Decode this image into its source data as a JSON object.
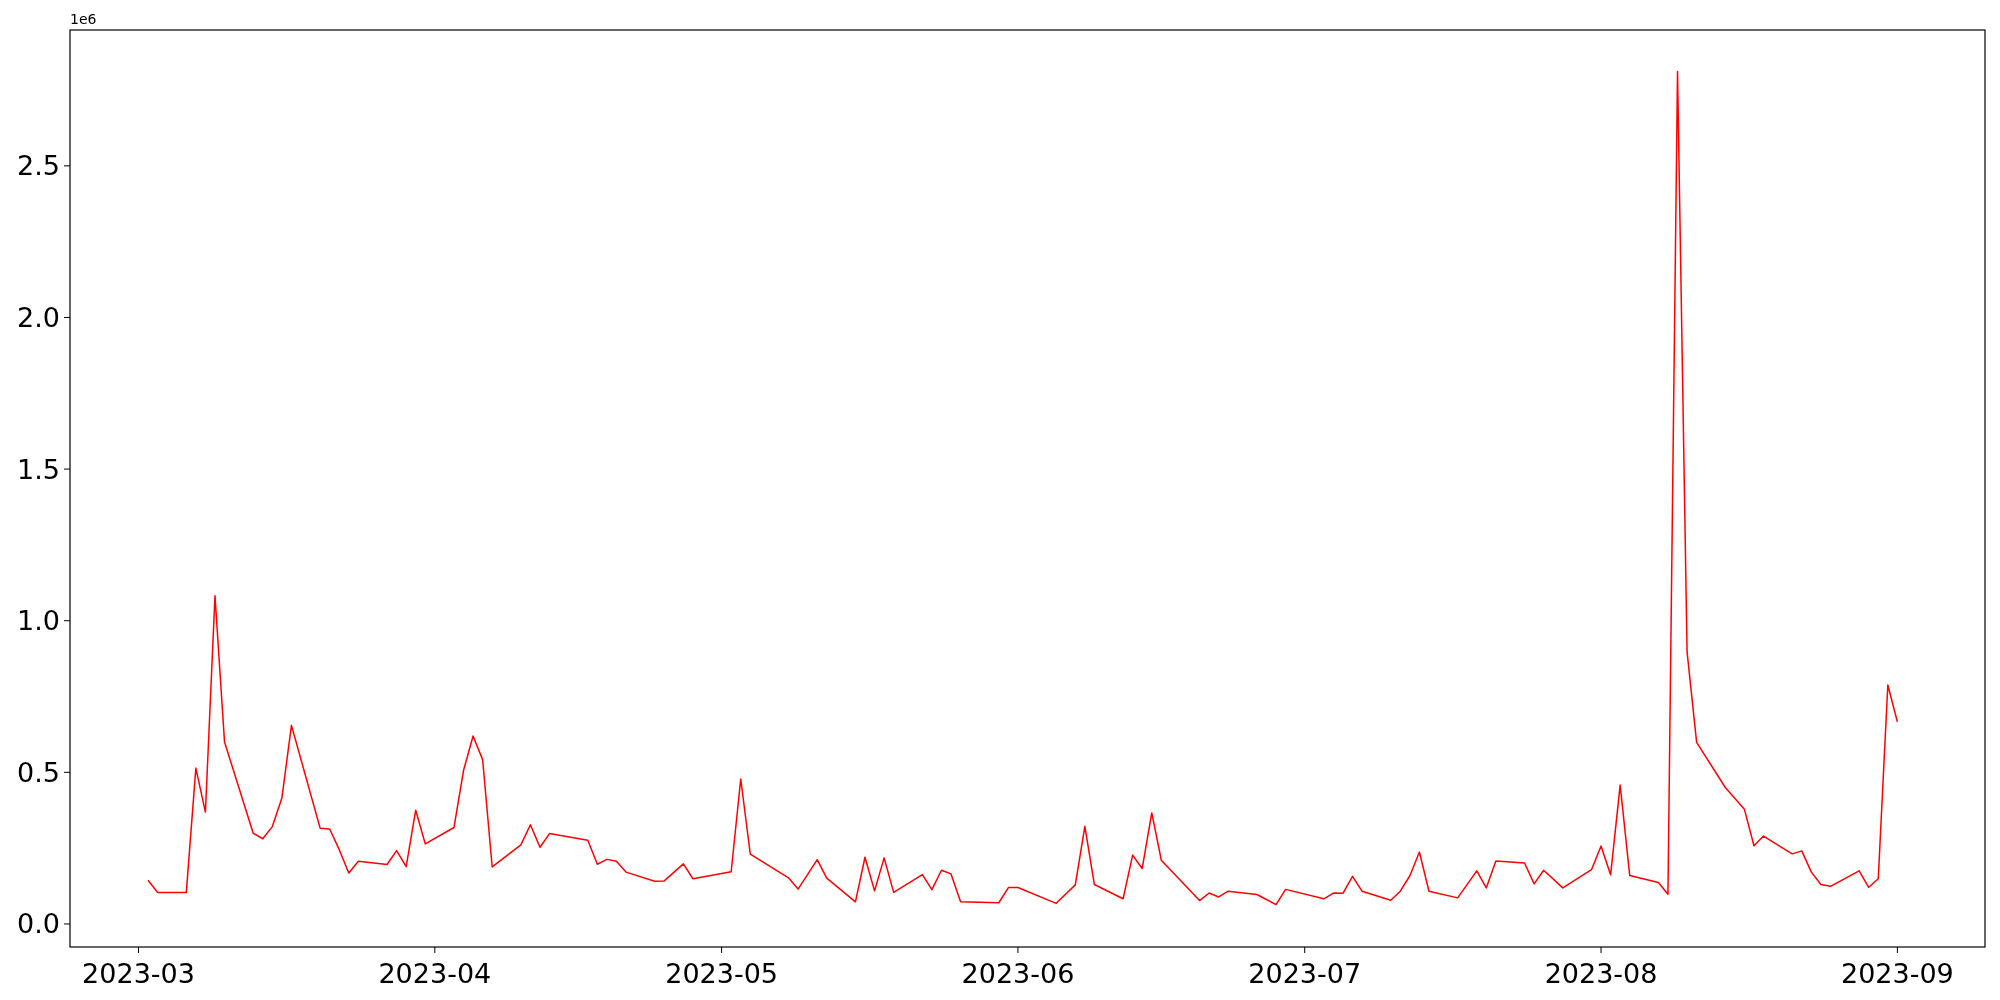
{
  "chart_data": {
    "type": "line",
    "annotations": [
      "1e6"
    ],
    "x": [
      "2023-03-02",
      "2023-03-03",
      "2023-03-06",
      "2023-03-07",
      "2023-03-08",
      "2023-03-09",
      "2023-03-10",
      "2023-03-13",
      "2023-03-14",
      "2023-03-15",
      "2023-03-16",
      "2023-03-17",
      "2023-03-20",
      "2023-03-21",
      "2023-03-22",
      "2023-03-23",
      "2023-03-24",
      "2023-03-27",
      "2023-03-28",
      "2023-03-29",
      "2023-03-30",
      "2023-03-31",
      "2023-04-03",
      "2023-04-04",
      "2023-04-05",
      "2023-04-06",
      "2023-04-07",
      "2023-04-10",
      "2023-04-11",
      "2023-04-12",
      "2023-04-13",
      "2023-04-17",
      "2023-04-18",
      "2023-04-19",
      "2023-04-20",
      "2023-04-21",
      "2023-04-24",
      "2023-04-25",
      "2023-04-27",
      "2023-04-28",
      "2023-05-02",
      "2023-05-03",
      "2023-05-04",
      "2023-05-08",
      "2023-05-09",
      "2023-05-11",
      "2023-05-12",
      "2023-05-15",
      "2023-05-16",
      "2023-05-17",
      "2023-05-18",
      "2023-05-19",
      "2023-05-22",
      "2023-05-23",
      "2023-05-24",
      "2023-05-25",
      "2023-05-26",
      "2023-05-30",
      "2023-05-31",
      "2023-06-01",
      "2023-06-05",
      "2023-06-07",
      "2023-06-08",
      "2023-06-09",
      "2023-06-12",
      "2023-06-13",
      "2023-06-14",
      "2023-06-15",
      "2023-06-16",
      "2023-06-20",
      "2023-06-21",
      "2023-06-22",
      "2023-06-23",
      "2023-06-26",
      "2023-06-28",
      "2023-06-29",
      "2023-07-03",
      "2023-07-04",
      "2023-07-05",
      "2023-07-06",
      "2023-07-07",
      "2023-07-10",
      "2023-07-11",
      "2023-07-12",
      "2023-07-13",
      "2023-07-14",
      "2023-07-17",
      "2023-07-19",
      "2023-07-20",
      "2023-07-21",
      "2023-07-24",
      "2023-07-25",
      "2023-07-26",
      "2023-07-28",
      "2023-07-31",
      "2023-08-01",
      "2023-08-02",
      "2023-08-03",
      "2023-08-04",
      "2023-08-07",
      "2023-08-08",
      "2023-08-09",
      "2023-08-10",
      "2023-08-11",
      "2023-08-14",
      "2023-08-16",
      "2023-08-17",
      "2023-08-18",
      "2023-08-21",
      "2023-08-22",
      "2023-08-23",
      "2023-08-24",
      "2023-08-25",
      "2023-08-28",
      "2023-08-29",
      "2023-08-30",
      "2023-08-31",
      "2023-09-01"
    ],
    "series": [
      {
        "color": "#ff0000",
        "values": [
          0.144,
          0.104,
          0.104,
          0.514,
          0.369,
          1.082,
          0.6,
          0.299,
          0.281,
          0.321,
          0.415,
          0.655,
          0.316,
          0.313,
          0.245,
          0.168,
          0.207,
          0.196,
          0.242,
          0.189,
          0.375,
          0.264,
          0.318,
          0.506,
          0.62,
          0.542,
          0.188,
          0.261,
          0.327,
          0.253,
          0.298,
          0.276,
          0.197,
          0.213,
          0.207,
          0.171,
          0.141,
          0.142,
          0.198,
          0.149,
          0.172,
          0.478,
          0.23,
          0.152,
          0.115,
          0.212,
          0.151,
          0.073,
          0.22,
          0.109,
          0.218,
          0.104,
          0.163,
          0.113,
          0.177,
          0.165,
          0.073,
          0.07,
          0.12,
          0.12,
          0.068,
          0.129,
          0.322,
          0.13,
          0.083,
          0.227,
          0.183,
          0.366,
          0.21,
          0.077,
          0.102,
          0.089,
          0.108,
          0.097,
          0.064,
          0.114,
          0.083,
          0.102,
          0.101,
          0.157,
          0.108,
          0.078,
          0.108,
          0.159,
          0.237,
          0.108,
          0.086,
          0.175,
          0.119,
          0.208,
          0.201,
          0.132,
          0.177,
          0.119,
          0.179,
          0.257,
          0.162,
          0.458,
          0.16,
          0.137,
          0.098,
          2.811,
          0.897,
          0.599,
          0.45,
          0.378,
          0.258,
          0.29,
          0.231,
          0.241,
          0.171,
          0.13,
          0.124,
          0.175,
          0.121,
          0.149,
          0.788,
          0.667
        ]
      }
    ],
    "xlim": [
      "2023-02-21T20:00",
      "2023-09-10T04:00"
    ],
    "ylim": [
      -0.076,
      2.948
    ],
    "xticks": [
      {
        "value": "2023-03-01",
        "label": "2023-03"
      },
      {
        "value": "2023-04-01",
        "label": "2023-04"
      },
      {
        "value": "2023-05-01",
        "label": "2023-05"
      },
      {
        "value": "2023-06-01",
        "label": "2023-06"
      },
      {
        "value": "2023-07-01",
        "label": "2023-07"
      },
      {
        "value": "2023-08-01",
        "label": "2023-08"
      },
      {
        "value": "2023-09-01",
        "label": "2023-09"
      }
    ],
    "yticks": [
      {
        "value": 0,
        "label": "0.0"
      },
      0.5,
      {
        "value": 1,
        "label": "1.0"
      },
      1.5,
      {
        "value": 2,
        "label": "2.0"
      },
      2.5
    ],
    "grid": false,
    "marker": "none",
    "line_style": "solid"
  }
}
